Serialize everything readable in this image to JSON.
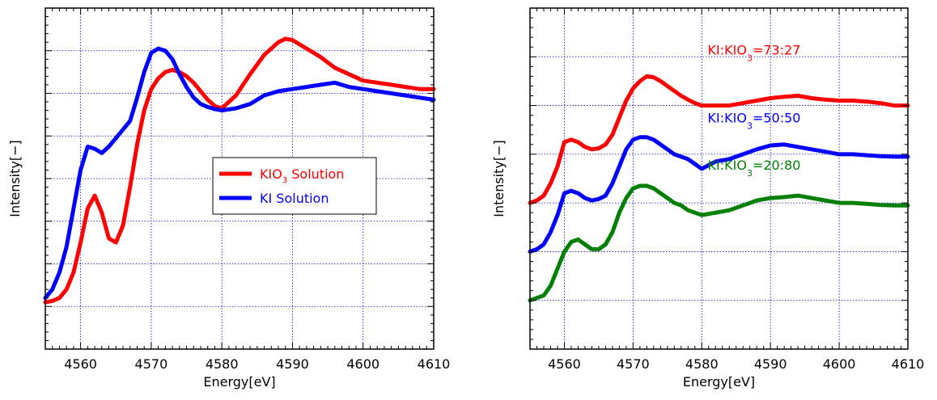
{
  "chart_data": [
    {
      "type": "line",
      "title": "",
      "xlabel": "Energy[eV]",
      "ylabel": "Intensity[−]",
      "xlim": [
        4555,
        4610
      ],
      "ylim": [
        0,
        8
      ],
      "xticks": [
        4560,
        4570,
        4580,
        4590,
        4600,
        4610
      ],
      "grid": true,
      "legend": "center-right",
      "series": [
        {
          "name": "KIO3 Solution",
          "name_base": "KIO",
          "name_sub": "3",
          "name_rest": " Solution",
          "color": "#ff0000",
          "x": [
            4555,
            4556,
            4557,
            4558,
            4559,
            4560,
            4561,
            4562,
            4563,
            4564,
            4565,
            4566,
            4567,
            4568,
            4569,
            4570,
            4571,
            4572,
            4573,
            4574,
            4575,
            4576,
            4577,
            4578,
            4579,
            4580,
            4582,
            4584,
            4586,
            4588,
            4589,
            4590,
            4592,
            4594,
            4596,
            4598,
            4600,
            4602,
            4604,
            4606,
            4608,
            4610
          ],
          "y": [
            1.1,
            1.13,
            1.2,
            1.4,
            1.8,
            2.5,
            3.3,
            3.6,
            3.2,
            2.6,
            2.5,
            2.9,
            3.8,
            4.8,
            5.6,
            6.1,
            6.35,
            6.5,
            6.55,
            6.5,
            6.4,
            6.25,
            6.05,
            5.85,
            5.7,
            5.65,
            5.95,
            6.45,
            6.9,
            7.2,
            7.28,
            7.25,
            7.05,
            6.85,
            6.6,
            6.45,
            6.3,
            6.25,
            6.2,
            6.15,
            6.1,
            6.1
          ]
        },
        {
          "name": "KI Solution",
          "name_base": "KI",
          "name_sub": "",
          "name_rest": " Solution",
          "color": "#0000ff",
          "x": [
            4555,
            4556,
            4557,
            4558,
            4559,
            4560,
            4561,
            4562,
            4563,
            4564,
            4565,
            4566,
            4567,
            4568,
            4569,
            4570,
            4571,
            4572,
            4573,
            4574,
            4575,
            4576,
            4577,
            4578,
            4579,
            4580,
            4582,
            4584,
            4586,
            4588,
            4590,
            4592,
            4594,
            4596,
            4598,
            4600,
            4602,
            4604,
            4606,
            4608,
            4610
          ],
          "y": [
            1.2,
            1.4,
            1.8,
            2.4,
            3.3,
            4.2,
            4.75,
            4.7,
            4.6,
            4.75,
            4.95,
            5.15,
            5.35,
            5.9,
            6.5,
            6.95,
            7.05,
            7.0,
            6.8,
            6.45,
            6.15,
            5.9,
            5.75,
            5.68,
            5.63,
            5.6,
            5.65,
            5.75,
            5.95,
            6.05,
            6.1,
            6.15,
            6.2,
            6.25,
            6.15,
            6.1,
            6.05,
            6.0,
            5.95,
            5.9,
            5.85
          ]
        }
      ]
    },
    {
      "type": "line",
      "title": "",
      "xlabel": "Energy[eV]",
      "ylabel": "Intensity[−]",
      "xlim": [
        4555,
        4610
      ],
      "ylim": [
        0,
        7
      ],
      "xticks": [
        4560,
        4570,
        4580,
        4590,
        4600,
        4610
      ],
      "grid": true,
      "legend": "inline labels",
      "series": [
        {
          "name": "KI:KIO3=73:27",
          "label_base": "KI:KIO",
          "label_sub": "3",
          "label_rest": "=73:27",
          "label_at": [
            4578.5,
            6.05
          ],
          "color": "#ff0000",
          "x": [
            4555,
            4556,
            4557,
            4558,
            4559,
            4560,
            4561,
            4562,
            4563,
            4564,
            4565,
            4566,
            4567,
            4568,
            4569,
            4570,
            4571,
            4572,
            4573,
            4574,
            4575,
            4576,
            4577,
            4578,
            4579,
            4580,
            4582,
            4584,
            4586,
            4588,
            4590,
            4592,
            4594,
            4596,
            4598,
            4600,
            4602,
            4604,
            4606,
            4608,
            4610
          ],
          "y": [
            3.0,
            3.05,
            3.15,
            3.4,
            3.75,
            4.25,
            4.3,
            4.25,
            4.15,
            4.1,
            4.12,
            4.2,
            4.4,
            4.75,
            5.1,
            5.35,
            5.5,
            5.6,
            5.58,
            5.5,
            5.4,
            5.3,
            5.2,
            5.12,
            5.05,
            5.0,
            5.0,
            5.0,
            5.05,
            5.1,
            5.15,
            5.18,
            5.2,
            5.15,
            5.12,
            5.1,
            5.1,
            5.08,
            5.05,
            5.0,
            5.0
          ]
        },
        {
          "name": "KI:KIO3=50:50",
          "label_base": "KI:KIO",
          "label_sub": "3",
          "label_rest": "=50:50",
          "label_at": [
            4578.5,
            4.65
          ],
          "color": "#0000ff",
          "x": [
            4555,
            4556,
            4557,
            4558,
            4559,
            4560,
            4561,
            4562,
            4563,
            4564,
            4565,
            4566,
            4567,
            4568,
            4569,
            4570,
            4571,
            4572,
            4573,
            4574,
            4575,
            4576,
            4577,
            4578,
            4579,
            4580,
            4582,
            4584,
            4586,
            4588,
            4590,
            4592,
            4594,
            4596,
            4598,
            4600,
            4602,
            4604,
            4606,
            4608,
            4610
          ],
          "y": [
            2.0,
            2.05,
            2.15,
            2.4,
            2.75,
            3.2,
            3.25,
            3.2,
            3.1,
            3.05,
            3.08,
            3.15,
            3.4,
            3.75,
            4.1,
            4.3,
            4.35,
            4.35,
            4.3,
            4.2,
            4.1,
            4.0,
            3.95,
            3.9,
            3.8,
            3.7,
            3.85,
            3.9,
            4.0,
            4.1,
            4.18,
            4.2,
            4.15,
            4.1,
            4.05,
            4.0,
            4.0,
            3.98,
            3.96,
            3.95,
            3.95
          ]
        },
        {
          "name": "KI:KIO3=20:80",
          "label_base": "KI:KIO",
          "label_sub": "3",
          "label_rest": "=20:80",
          "label_at": [
            4578.5,
            3.68
          ],
          "color": "#008000",
          "x": [
            4555,
            4556,
            4557,
            4558,
            4559,
            4560,
            4561,
            4562,
            4563,
            4564,
            4565,
            4566,
            4567,
            4568,
            4569,
            4570,
            4571,
            4572,
            4573,
            4574,
            4575,
            4576,
            4577,
            4578,
            4579,
            4580,
            4582,
            4584,
            4586,
            4588,
            4590,
            4592,
            4594,
            4596,
            4598,
            4600,
            4602,
            4604,
            4606,
            4608,
            4610
          ],
          "y": [
            1.0,
            1.05,
            1.1,
            1.3,
            1.65,
            2.0,
            2.2,
            2.25,
            2.15,
            2.05,
            2.05,
            2.15,
            2.4,
            2.8,
            3.1,
            3.3,
            3.35,
            3.35,
            3.3,
            3.2,
            3.1,
            3.0,
            2.95,
            2.85,
            2.8,
            2.75,
            2.8,
            2.85,
            2.95,
            3.05,
            3.1,
            3.12,
            3.15,
            3.1,
            3.05,
            3.0,
            3.0,
            2.98,
            2.96,
            2.95,
            2.95
          ]
        }
      ]
    }
  ]
}
